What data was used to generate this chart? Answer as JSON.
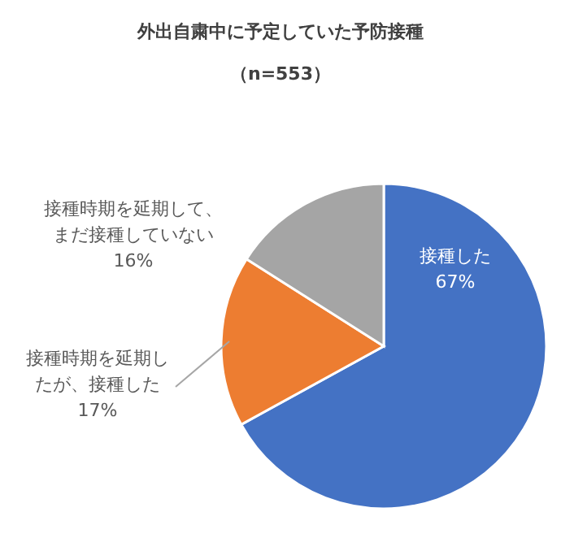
{
  "chart_data": {
    "type": "pie",
    "title": "外出自粛中に予定していた予防接種",
    "subtitle": "（n=553）",
    "categories": [
      "接種した",
      "接種時期を延期したが、接種した",
      "接種時期を延期して、まだ接種していない"
    ],
    "values": [
      67,
      17,
      16
    ],
    "value_labels": [
      "67%",
      "17%",
      "16%"
    ],
    "colors": [
      "#4472c4",
      "#ed7d31",
      "#a5a5a5"
    ]
  }
}
